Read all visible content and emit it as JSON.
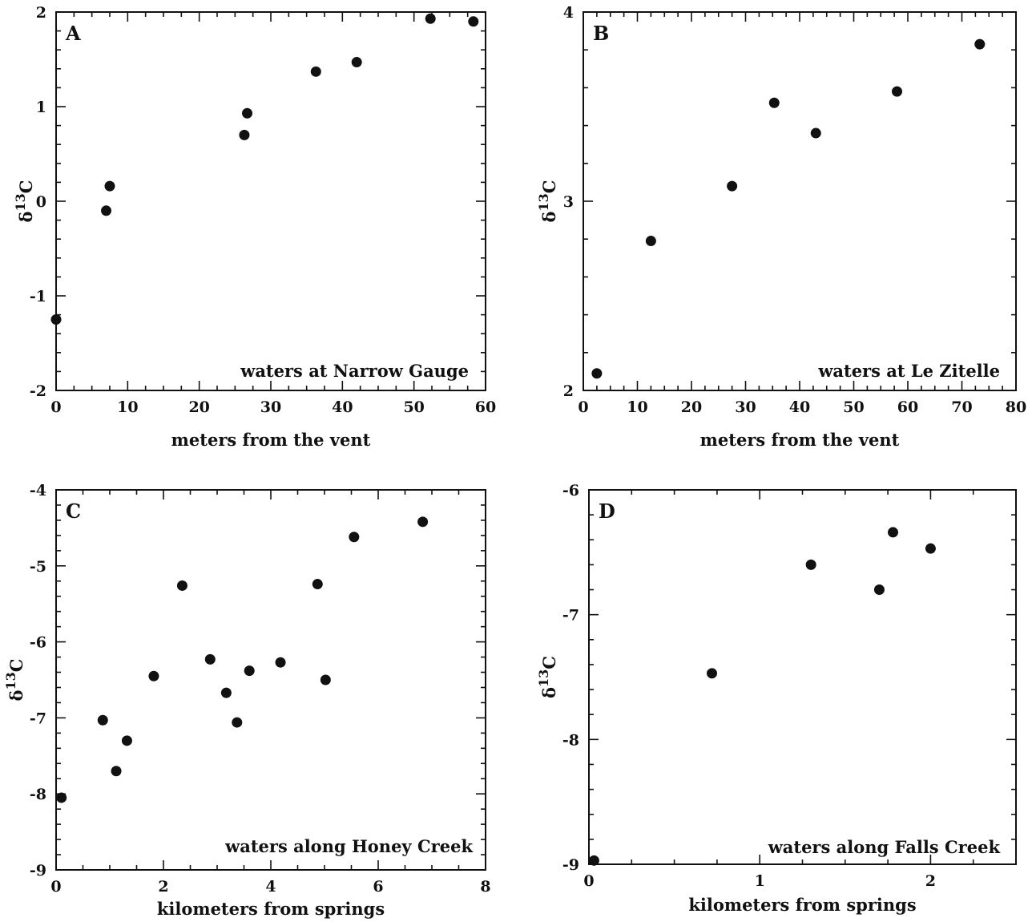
{
  "chart_data": [
    {
      "type": "scatter",
      "panel": "A",
      "xlabel": "meters from the vent",
      "ylabel": "δ",
      "ylabel_sup": "13",
      "ylabel_sub": "C",
      "annotation": "waters at Narrow Gauge",
      "xlim": [
        0,
        60
      ],
      "ylim": [
        -2,
        2
      ],
      "xticks": [
        0,
        10,
        20,
        30,
        40,
        50,
        60
      ],
      "yticks": [
        -2,
        -1,
        0,
        1,
        2
      ],
      "xtick_labels": [
        "0",
        "10",
        "20",
        "30",
        "40",
        "50",
        "60"
      ],
      "ytick_labels": [
        "-2",
        "-1",
        "0",
        "1",
        "2"
      ],
      "grid": false,
      "points": [
        {
          "x": 0,
          "y": -1.25
        },
        {
          "x": 7,
          "y": -0.1
        },
        {
          "x": 7.5,
          "y": 0.16
        },
        {
          "x": 26.3,
          "y": 0.7
        },
        {
          "x": 26.7,
          "y": 0.93
        },
        {
          "x": 36.3,
          "y": 1.37
        },
        {
          "x": 42,
          "y": 1.47
        },
        {
          "x": 52.3,
          "y": 1.93
        },
        {
          "x": 58.3,
          "y": 1.9
        }
      ]
    },
    {
      "type": "scatter",
      "panel": "B",
      "xlabel": "meters from the vent",
      "ylabel": "δ",
      "ylabel_sup": "13",
      "ylabel_sub": "C",
      "annotation": "waters at Le Zitelle",
      "xlim": [
        0,
        80
      ],
      "ylim": [
        2,
        4
      ],
      "xticks": [
        0,
        10,
        20,
        30,
        40,
        50,
        60,
        70,
        80
      ],
      "yticks": [
        2,
        3,
        4
      ],
      "xtick_labels": [
        "0",
        "10",
        "20",
        "30",
        "40",
        "50",
        "60",
        "70",
        "80"
      ],
      "ytick_labels": [
        "2",
        "3",
        "4"
      ],
      "grid": false,
      "points": [
        {
          "x": 2.5,
          "y": 2.09
        },
        {
          "x": 12.5,
          "y": 2.79
        },
        {
          "x": 27.5,
          "y": 3.08
        },
        {
          "x": 35.3,
          "y": 3.52
        },
        {
          "x": 43,
          "y": 3.36
        },
        {
          "x": 58,
          "y": 3.58
        },
        {
          "x": 73.3,
          "y": 3.83
        }
      ]
    },
    {
      "type": "scatter",
      "panel": "C",
      "xlabel": "kilometers from springs",
      "ylabel": "δ",
      "ylabel_sup": "13",
      "ylabel_sub": "C",
      "annotation": "waters along Honey Creek",
      "xlim": [
        0,
        8
      ],
      "ylim": [
        -9,
        -4
      ],
      "xticks": [
        0,
        2,
        4,
        6,
        8
      ],
      "yticks": [
        -9,
        -8,
        -7,
        -6,
        -5,
        -4
      ],
      "xtick_labels": [
        "0",
        "2",
        "4",
        "6",
        "8"
      ],
      "ytick_labels": [
        "-9",
        "-8",
        "-7",
        "-6",
        "-5",
        "-4"
      ],
      "grid": false,
      "points": [
        {
          "x": 0.1,
          "y": -8.05
        },
        {
          "x": 0.87,
          "y": -7.03
        },
        {
          "x": 1.12,
          "y": -7.7
        },
        {
          "x": 1.32,
          "y": -7.3
        },
        {
          "x": 1.82,
          "y": -6.45
        },
        {
          "x": 2.35,
          "y": -5.26
        },
        {
          "x": 2.87,
          "y": -6.23
        },
        {
          "x": 3.17,
          "y": -6.67
        },
        {
          "x": 3.37,
          "y": -7.06
        },
        {
          "x": 3.6,
          "y": -6.38
        },
        {
          "x": 4.18,
          "y": -6.27
        },
        {
          "x": 4.87,
          "y": -5.24
        },
        {
          "x": 5.02,
          "y": -6.5
        },
        {
          "x": 5.55,
          "y": -4.62
        },
        {
          "x": 6.83,
          "y": -4.42
        }
      ]
    },
    {
      "type": "scatter",
      "panel": "D",
      "xlabel": "kilometers from springs",
      "ylabel": "δ",
      "ylabel_sup": "13",
      "ylabel_sub": "C",
      "annotation": "waters along Falls Creek",
      "xlim": [
        0,
        2.5
      ],
      "ylim": [
        -9,
        -6
      ],
      "xticks": [
        0,
        1,
        2
      ],
      "yticks": [
        -9,
        -8,
        -7,
        -6
      ],
      "xtick_labels": [
        "0",
        "1",
        "2"
      ],
      "ytick_labels": [
        "-9",
        "-8",
        "-7",
        "-6"
      ],
      "grid": false,
      "points": [
        {
          "x": 0.03,
          "y": -8.97
        },
        {
          "x": 0.72,
          "y": -7.47
        },
        {
          "x": 1.3,
          "y": -6.6
        },
        {
          "x": 1.7,
          "y": -6.8
        },
        {
          "x": 1.78,
          "y": -6.34
        },
        {
          "x": 2.0,
          "y": -6.47
        }
      ]
    }
  ]
}
